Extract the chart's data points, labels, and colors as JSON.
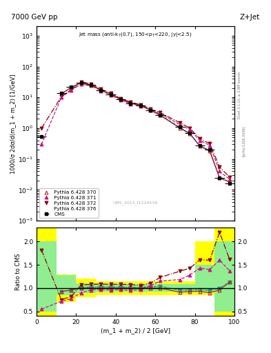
{
  "title_top": "7000 GeV pp",
  "title_right": "Z+Jet",
  "plot_title": "Jet mass (anti-k_{T}(0.7), 150<p_{T}<220, |y|<2.5)",
  "ylabel_main": "1000/σ 2dσ/d(m_1 + m_2) [1/GeV]",
  "ylabel_ratio": "Ratio to CMS",
  "xlabel": "(m_1 + m_2) / 2 [GeV]",
  "watermark": "CMS_2013_I1224539",
  "side_text1": "Rivet 3.1.10, ≥ 2.8M events",
  "side_text2": "[arXiv:1306.3436]",
  "x_data": [
    2.5,
    7.5,
    12.5,
    17.5,
    22.5,
    27.5,
    32.5,
    37.5,
    42.5,
    47.5,
    52.5,
    57.5,
    62.5,
    67.5,
    72.5,
    77.5,
    82.5,
    87.5,
    92.5,
    97.5
  ],
  "cms_y": [
    0.55,
    null,
    14.0,
    22.0,
    30.0,
    25.0,
    17.0,
    12.5,
    8.5,
    6.5,
    5.5,
    3.8,
    2.6,
    null,
    1.1,
    0.7,
    0.28,
    0.2,
    0.025,
    0.016
  ],
  "p370_y": [
    null,
    null,
    13.0,
    21.0,
    30.0,
    25.0,
    17.0,
    12.5,
    8.5,
    6.5,
    5.5,
    3.8,
    2.6,
    null,
    1.0,
    0.65,
    0.26,
    0.18,
    0.024,
    0.018
  ],
  "p371_y": [
    0.3,
    null,
    10.0,
    17.0,
    27.0,
    24.0,
    16.5,
    12.0,
    8.2,
    6.2,
    5.3,
    4.0,
    3.0,
    null,
    1.3,
    0.9,
    0.4,
    0.28,
    0.04,
    0.022
  ],
  "p372_y": [
    1.0,
    null,
    10.5,
    18.0,
    32.0,
    27.0,
    18.5,
    13.5,
    9.2,
    7.0,
    5.8,
    4.2,
    3.2,
    null,
    1.5,
    1.0,
    0.45,
    0.32,
    0.055,
    0.026
  ],
  "p376_y": [
    null,
    null,
    13.0,
    21.0,
    30.5,
    25.5,
    17.5,
    12.8,
    8.7,
    6.6,
    5.6,
    3.9,
    2.7,
    null,
    1.05,
    0.67,
    0.27,
    0.19,
    0.025,
    0.018
  ],
  "color_370": "#b22222",
  "color_371": "#c71585",
  "color_372": "#8b0000",
  "color_376": "#008b8b",
  "color_cms": "black",
  "xlim": [
    0,
    100
  ],
  "ylim_main": [
    0.001,
    2000.0
  ],
  "ylim_ratio": [
    0.4,
    2.3
  ],
  "ratio_x_edges": [
    0,
    5,
    10,
    20,
    30,
    50,
    80,
    90,
    100
  ],
  "yellow_lo": [
    0.35,
    0.35,
    0.7,
    0.8,
    0.85,
    0.85,
    0.85,
    0.35
  ],
  "yellow_hi": [
    2.3,
    2.3,
    1.3,
    1.2,
    1.15,
    1.15,
    2.0,
    2.3
  ],
  "green_lo": [
    0.5,
    0.5,
    0.85,
    0.9,
    0.92,
    0.92,
    0.92,
    0.5
  ],
  "green_hi": [
    2.0,
    2.0,
    1.28,
    1.1,
    1.08,
    1.08,
    1.5,
    2.0
  ]
}
